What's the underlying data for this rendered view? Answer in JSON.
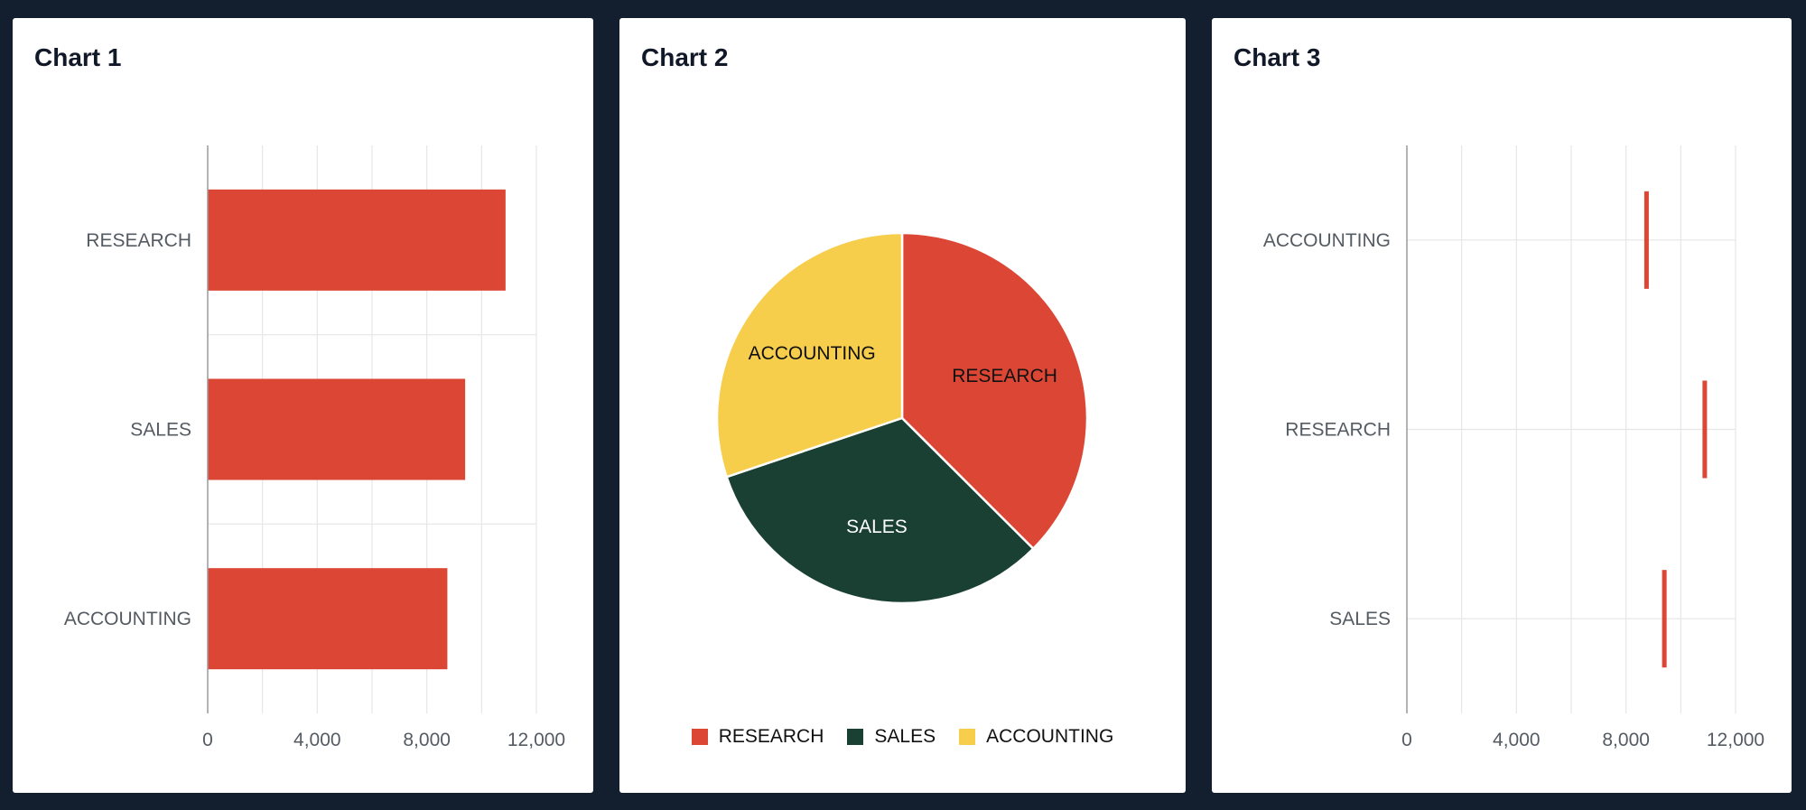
{
  "colors": {
    "accent": "#dc4735",
    "sales": "#1a4034",
    "accounting": "#f7cd4c"
  },
  "chart_data": [
    {
      "type": "bar",
      "title": "Chart 1",
      "orientation": "horizontal",
      "categories": [
        "RESEARCH",
        "SALES",
        "ACCOUNTING"
      ],
      "values": [
        10875,
        9400,
        8750
      ],
      "xticks": [
        "0",
        "4,000",
        "8,000",
        "12,000"
      ],
      "xlim": [
        0,
        12000
      ],
      "grid": true
    },
    {
      "type": "pie",
      "title": "Chart 2",
      "categories": [
        "RESEARCH",
        "SALES",
        "ACCOUNTING"
      ],
      "values": [
        10875,
        9400,
        8750
      ],
      "colors": [
        "#dc4735",
        "#1a4034",
        "#f7cd4c"
      ],
      "legend": "bottom"
    },
    {
      "type": "scatter",
      "title": "Chart 3",
      "orientation": "horizontal",
      "categories": [
        "ACCOUNTING",
        "RESEARCH",
        "SALES"
      ],
      "values": [
        8750,
        10875,
        9400
      ],
      "xticks": [
        "0",
        "4,000",
        "8,000",
        "12,000"
      ],
      "xlim": [
        0,
        12000
      ],
      "grid": true
    }
  ]
}
